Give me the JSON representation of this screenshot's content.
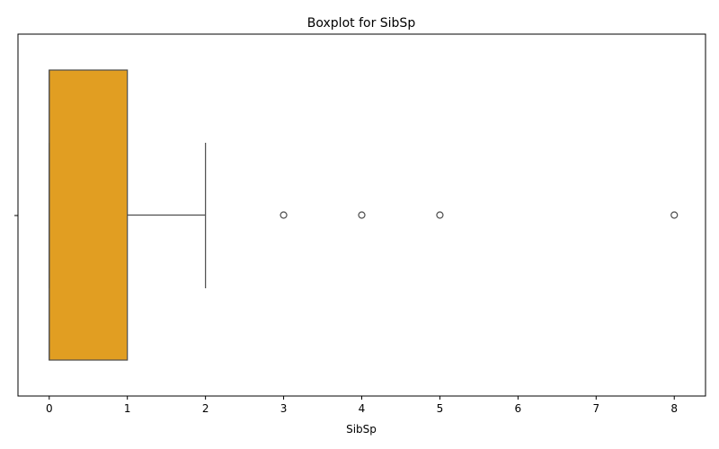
{
  "chart_data": {
    "type": "box",
    "orientation": "horizontal",
    "title": "Boxplot for SibSp",
    "xlabel": "SibSp",
    "ylabel": "",
    "xlim": [
      -0.4,
      8.4
    ],
    "xticks": [
      0,
      1,
      2,
      3,
      4,
      5,
      6,
      7,
      8
    ],
    "grid": false,
    "box": {
      "min": 0,
      "q1": 0,
      "median": 0,
      "q3": 1,
      "whisker_low": 0,
      "whisker_high": 2,
      "outliers": [
        3,
        4,
        5,
        8
      ]
    },
    "colors": {
      "box_fill": "#e19e22",
      "edge": "#4d4d4d",
      "axis": "#000000"
    }
  }
}
